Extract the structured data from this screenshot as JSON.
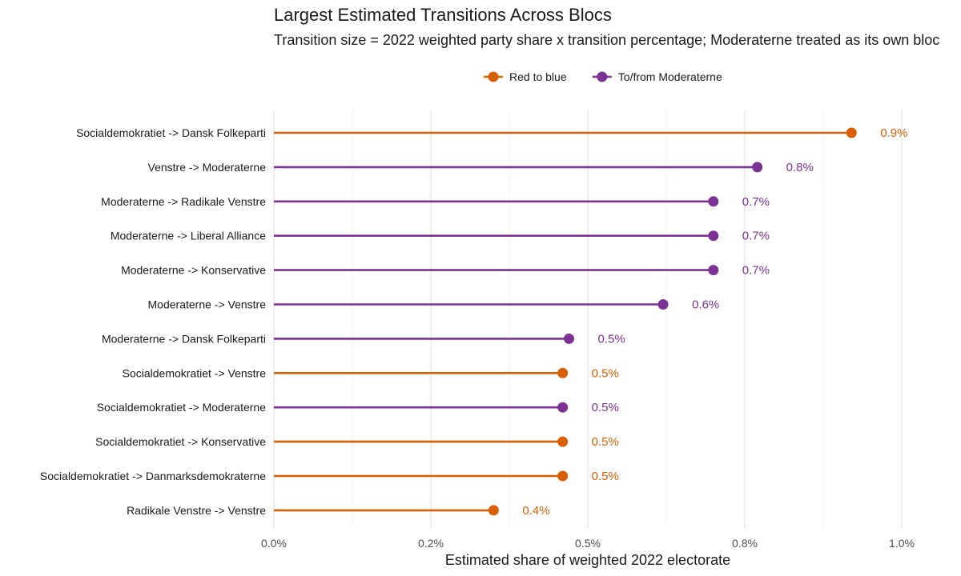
{
  "chart_data": {
    "type": "lollipop",
    "title": "Largest Estimated Transitions Across Blocs",
    "subtitle": "Transition size = 2022 weighted party share x transition percentage; Moderaterne treated as its own bloc",
    "xlabel": "Estimated share of weighted 2022 electorate",
    "ylabel": "",
    "xlim": [
      0,
      1.0
    ],
    "x_ticks": [
      "0.0%",
      "0.2%",
      "0.5%",
      "0.8%",
      "1.0%"
    ],
    "x_tick_values": [
      0,
      0.25,
      0.5,
      0.75,
      1.0
    ],
    "grid": true,
    "legend_position": "top",
    "legend": [
      {
        "name": "Red to blue",
        "color": "#d95f02"
      },
      {
        "name": "To/from Moderaterne",
        "color": "#7b3294"
      }
    ],
    "rows": [
      {
        "label": "Socialdemokratiet -> Dansk Folkeparti",
        "value": 0.92,
        "display": "0.9%",
        "group": "Red to blue"
      },
      {
        "label": "Venstre -> Moderaterne",
        "value": 0.77,
        "display": "0.8%",
        "group": "To/from Moderaterne"
      },
      {
        "label": "Moderaterne -> Radikale Venstre",
        "value": 0.7,
        "display": "0.7%",
        "group": "To/from Moderaterne"
      },
      {
        "label": "Moderaterne -> Liberal Alliance",
        "value": 0.7,
        "display": "0.7%",
        "group": "To/from Moderaterne"
      },
      {
        "label": "Moderaterne -> Konservative",
        "value": 0.7,
        "display": "0.7%",
        "group": "To/from Moderaterne"
      },
      {
        "label": "Moderaterne -> Venstre",
        "value": 0.62,
        "display": "0.6%",
        "group": "To/from Moderaterne"
      },
      {
        "label": "Moderaterne -> Dansk Folkeparti",
        "value": 0.47,
        "display": "0.5%",
        "group": "To/from Moderaterne"
      },
      {
        "label": "Socialdemokratiet -> Venstre",
        "value": 0.46,
        "display": "0.5%",
        "group": "Red to blue"
      },
      {
        "label": "Socialdemokratiet -> Moderaterne",
        "value": 0.46,
        "display": "0.5%",
        "group": "To/from Moderaterne"
      },
      {
        "label": "Socialdemokratiet -> Konservative",
        "value": 0.46,
        "display": "0.5%",
        "group": "Red to blue"
      },
      {
        "label": "Socialdemokratiet -> Danmarksdemokraterne",
        "value": 0.46,
        "display": "0.5%",
        "group": "Red to blue"
      },
      {
        "label": "Radikale Venstre -> Venstre",
        "value": 0.35,
        "display": "0.4%",
        "group": "Red to blue"
      }
    ]
  }
}
